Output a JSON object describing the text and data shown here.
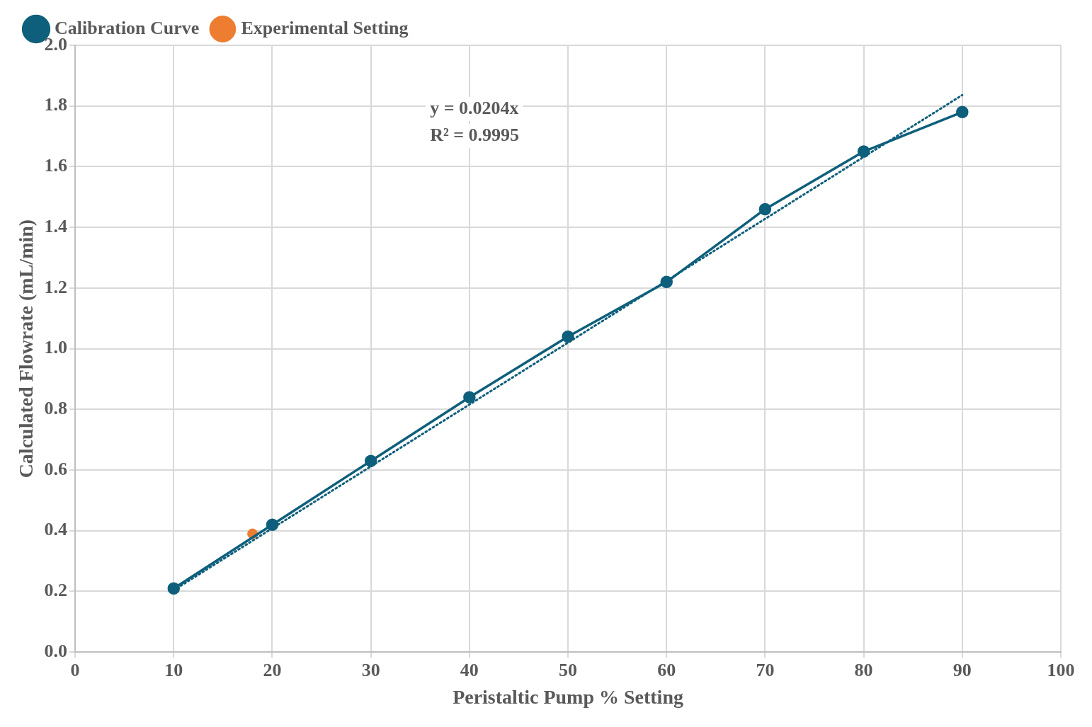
{
  "chart_data": {
    "type": "line",
    "xlabel": "Peristaltic Pump % Setting",
    "ylabel": "Calculated Flowrate (mL/min)",
    "xlim": [
      0,
      100
    ],
    "xticks": [
      0,
      10,
      20,
      30,
      40,
      50,
      60,
      70,
      80,
      90,
      100
    ],
    "ylim": [
      0,
      2
    ],
    "yticks": [
      {
        "value": 0,
        "label": "0.0"
      },
      {
        "value": 0.2,
        "label": "0.2"
      },
      {
        "value": 0.4,
        "label": "0.4"
      },
      {
        "value": 0.6,
        "label": "0.6"
      },
      {
        "value": 0.8,
        "label": "0.8"
      },
      {
        "value": 1,
        "label": "1.0"
      },
      {
        "value": 1.2,
        "label": "1.2"
      },
      {
        "value": 1.4,
        "label": "1.4"
      },
      {
        "value": 1.6,
        "label": "1.6"
      },
      {
        "value": 1.8,
        "label": "1.8"
      },
      {
        "value": 2,
        "label": "2.0"
      }
    ],
    "grid": true,
    "legend": "top left",
    "marker": "circle",
    "series": [
      {
        "name": "Calibration Curve",
        "color": "#0e5f7b",
        "x": [
          10,
          20,
          30,
          40,
          50,
          60,
          70,
          80,
          90
        ],
        "values": [
          0.21,
          0.42,
          0.63,
          0.84,
          1.04,
          1.22,
          1.46,
          1.65,
          1.78
        ]
      },
      {
        "name": "Experimental Setting",
        "color": "#ed7d31",
        "type": "scatter",
        "x": [
          18
        ],
        "values": [
          0.39
        ]
      },
      {
        "color": "#0e5f7b",
        "line_style": "dotted",
        "marker": "none",
        "x": [
          10,
          90
        ],
        "values": [
          0.204,
          1.836
        ]
      }
    ],
    "annotations": [
      "y = 0.0204x",
      "R² = 0.9995"
    ]
  }
}
